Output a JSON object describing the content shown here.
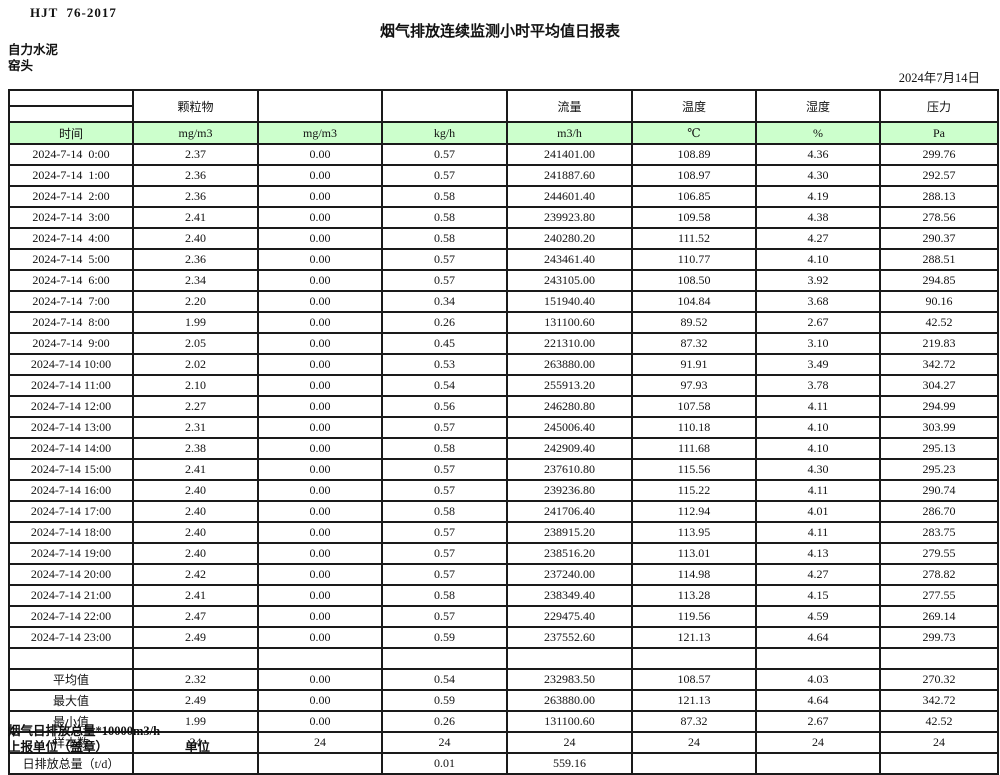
{
  "header": {
    "standard": "HJT  76-2017",
    "title": "烟气排放连续监测小时平均值日报表",
    "company": "自力水泥",
    "station": "窑头",
    "date": "2024年7月14日"
  },
  "table": {
    "group_headers": [
      "颗粒物",
      "",
      "",
      "流量",
      "温度",
      "湿度",
      "压力"
    ],
    "units": [
      "时间",
      "mg/m3",
      "mg/m3",
      "kg/h",
      "m3/h",
      "℃",
      "%",
      "Pa"
    ],
    "rows": [
      [
        "2024-7-14  0:00",
        "2.37",
        "0.00",
        "0.57",
        "241401.00",
        "108.89",
        "4.36",
        "299.76"
      ],
      [
        "2024-7-14  1:00",
        "2.36",
        "0.00",
        "0.57",
        "241887.60",
        "108.97",
        "4.30",
        "292.57"
      ],
      [
        "2024-7-14  2:00",
        "2.36",
        "0.00",
        "0.58",
        "244601.40",
        "106.85",
        "4.19",
        "288.13"
      ],
      [
        "2024-7-14  3:00",
        "2.41",
        "0.00",
        "0.58",
        "239923.80",
        "109.58",
        "4.38",
        "278.56"
      ],
      [
        "2024-7-14  4:00",
        "2.40",
        "0.00",
        "0.58",
        "240280.20",
        "111.52",
        "4.27",
        "290.37"
      ],
      [
        "2024-7-14  5:00",
        "2.36",
        "0.00",
        "0.57",
        "243461.40",
        "110.77",
        "4.10",
        "288.51"
      ],
      [
        "2024-7-14  6:00",
        "2.34",
        "0.00",
        "0.57",
        "243105.00",
        "108.50",
        "3.92",
        "294.85"
      ],
      [
        "2024-7-14  7:00",
        "2.20",
        "0.00",
        "0.34",
        "151940.40",
        "104.84",
        "3.68",
        "90.16"
      ],
      [
        "2024-7-14  8:00",
        "1.99",
        "0.00",
        "0.26",
        "131100.60",
        "89.52",
        "2.67",
        "42.52"
      ],
      [
        "2024-7-14  9:00",
        "2.05",
        "0.00",
        "0.45",
        "221310.00",
        "87.32",
        "3.10",
        "219.83"
      ],
      [
        "2024-7-14 10:00",
        "2.02",
        "0.00",
        "0.53",
        "263880.00",
        "91.91",
        "3.49",
        "342.72"
      ],
      [
        "2024-7-14 11:00",
        "2.10",
        "0.00",
        "0.54",
        "255913.20",
        "97.93",
        "3.78",
        "304.27"
      ],
      [
        "2024-7-14 12:00",
        "2.27",
        "0.00",
        "0.56",
        "246280.80",
        "107.58",
        "4.11",
        "294.99"
      ],
      [
        "2024-7-14 13:00",
        "2.31",
        "0.00",
        "0.57",
        "245006.40",
        "110.18",
        "4.10",
        "303.99"
      ],
      [
        "2024-7-14 14:00",
        "2.38",
        "0.00",
        "0.58",
        "242909.40",
        "111.68",
        "4.10",
        "295.13"
      ],
      [
        "2024-7-14 15:00",
        "2.41",
        "0.00",
        "0.57",
        "237610.80",
        "115.56",
        "4.30",
        "295.23"
      ],
      [
        "2024-7-14 16:00",
        "2.40",
        "0.00",
        "0.57",
        "239236.80",
        "115.22",
        "4.11",
        "290.74"
      ],
      [
        "2024-7-14 17:00",
        "2.40",
        "0.00",
        "0.58",
        "241706.40",
        "112.94",
        "4.01",
        "286.70"
      ],
      [
        "2024-7-14 18:00",
        "2.40",
        "0.00",
        "0.57",
        "238915.20",
        "113.95",
        "4.11",
        "283.75"
      ],
      [
        "2024-7-14 19:00",
        "2.40",
        "0.00",
        "0.57",
        "238516.20",
        "113.01",
        "4.13",
        "279.55"
      ],
      [
        "2024-7-14 20:00",
        "2.42",
        "0.00",
        "0.57",
        "237240.00",
        "114.98",
        "4.27",
        "278.82"
      ],
      [
        "2024-7-14 21:00",
        "2.41",
        "0.00",
        "0.58",
        "238349.40",
        "113.28",
        "4.15",
        "277.55"
      ],
      [
        "2024-7-14 22:00",
        "2.47",
        "0.00",
        "0.57",
        "229475.40",
        "119.56",
        "4.59",
        "269.14"
      ],
      [
        "2024-7-14 23:00",
        "2.49",
        "0.00",
        "0.59",
        "237552.60",
        "121.13",
        "4.64",
        "299.73"
      ]
    ],
    "summary_rows": [
      [
        "平均值",
        "2.32",
        "0.00",
        "0.54",
        "232983.50",
        "108.57",
        "4.03",
        "270.32"
      ],
      [
        "最大值",
        "2.49",
        "0.00",
        "0.59",
        "263880.00",
        "121.13",
        "4.64",
        "342.72"
      ],
      [
        "最小值",
        "1.99",
        "0.00",
        "0.26",
        "131100.60",
        "87.32",
        "2.67",
        "42.52"
      ],
      [
        "样本数",
        "24",
        "24",
        "24",
        "24",
        "24",
        "24",
        "24"
      ],
      [
        "日排放总量（t/d）",
        "",
        "",
        "0.01",
        "559.16",
        "",
        "",
        ""
      ]
    ]
  },
  "footer": {
    "note": "烟气日排放总量*10000m3/h",
    "report_unit": "上报单位（盖章）",
    "unit": "单位"
  },
  "colors": {
    "unit_row_green": "#ccffcc",
    "border": "#1a1a1a"
  }
}
